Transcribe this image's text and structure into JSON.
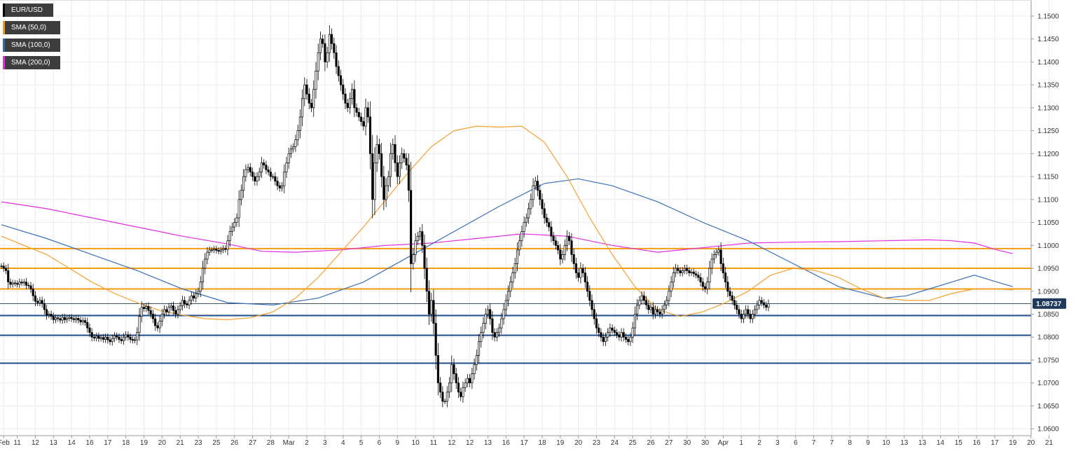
{
  "chart_data": {
    "type": "candlestick",
    "symbol": "EUR/USD",
    "ylim": [
      1.0585,
      1.1535
    ],
    "y_ticks": [
      "1.0600",
      "1.0650",
      "1.0700",
      "1.0750",
      "1.0800",
      "1.0850",
      "1.0900",
      "1.0950",
      "1.1000",
      "1.1050",
      "1.1100",
      "1.1150",
      "1.1200",
      "1.1250",
      "1.1300",
      "1.1350",
      "1.1400",
      "1.1450",
      "1.1500"
    ],
    "x_ticks": [
      {
        "i": 1,
        "label": "Feb"
      },
      {
        "i": 7,
        "label": "11"
      },
      {
        "i": 15,
        "label": "12"
      },
      {
        "i": 23,
        "label": "13"
      },
      {
        "i": 31,
        "label": "14"
      },
      {
        "i": 39,
        "label": "16"
      },
      {
        "i": 47,
        "label": "17"
      },
      {
        "i": 55,
        "label": "18"
      },
      {
        "i": 63,
        "label": "19"
      },
      {
        "i": 71,
        "label": "20"
      },
      {
        "i": 79,
        "label": "21"
      },
      {
        "i": 87,
        "label": "23"
      },
      {
        "i": 95,
        "label": "25"
      },
      {
        "i": 103,
        "label": "26"
      },
      {
        "i": 111,
        "label": "27"
      },
      {
        "i": 119,
        "label": "28"
      },
      {
        "i": 127,
        "label": "Mar"
      },
      {
        "i": 135,
        "label": "2"
      },
      {
        "i": 143,
        "label": "3"
      },
      {
        "i": 151,
        "label": "4"
      },
      {
        "i": 159,
        "label": "5"
      },
      {
        "i": 167,
        "label": "6"
      },
      {
        "i": 175,
        "label": "9"
      },
      {
        "i": 183,
        "label": "10"
      },
      {
        "i": 191,
        "label": "11"
      },
      {
        "i": 199,
        "label": "12"
      },
      {
        "i": 207,
        "label": "12"
      },
      {
        "i": 215,
        "label": "13"
      },
      {
        "i": 223,
        "label": "16"
      },
      {
        "i": 231,
        "label": "17"
      },
      {
        "i": 239,
        "label": "18"
      },
      {
        "i": 247,
        "label": "19"
      },
      {
        "i": 255,
        "label": "20"
      },
      {
        "i": 263,
        "label": "23"
      },
      {
        "i": 271,
        "label": "24"
      },
      {
        "i": 279,
        "label": "25"
      },
      {
        "i": 287,
        "label": "26"
      },
      {
        "i": 295,
        "label": "27"
      },
      {
        "i": 303,
        "label": "30"
      },
      {
        "i": 311,
        "label": "30"
      },
      {
        "i": 319,
        "label": "Apr"
      },
      {
        "i": 327,
        "label": "1"
      },
      {
        "i": 335,
        "label": "2"
      },
      {
        "i": 343,
        "label": "3"
      },
      {
        "i": 351,
        "label": "6"
      },
      {
        "i": 359,
        "label": "7"
      },
      {
        "i": 367,
        "label": "7"
      },
      {
        "i": 375,
        "label": "8"
      },
      {
        "i": 383,
        "label": "9"
      },
      {
        "i": 391,
        "label": "10"
      },
      {
        "i": 399,
        "label": "13"
      },
      {
        "i": 407,
        "label": "13"
      },
      {
        "i": 415,
        "label": "14"
      },
      {
        "i": 423,
        "label": "15"
      },
      {
        "i": 431,
        "label": "16"
      },
      {
        "i": 439,
        "label": "17"
      },
      {
        "i": 447,
        "label": "19"
      },
      {
        "i": 455,
        "label": "20"
      },
      {
        "i": 463,
        "label": "21"
      }
    ],
    "closes": [
      1.0955,
      1.095,
      1.0945,
      1.092,
      1.0915,
      1.0918,
      1.0917,
      1.0915,
      1.092,
      1.0918,
      1.092,
      1.0913,
      1.0912,
      1.0905,
      1.089,
      1.0878,
      1.0875,
      1.088,
      1.0873,
      1.086,
      1.0848,
      1.085,
      1.0845,
      1.0838,
      1.0842,
      1.084,
      1.0837,
      1.0843,
      1.0838,
      1.0841,
      1.0843,
      1.084,
      1.0838,
      1.0841,
      1.0837,
      1.0833,
      1.0836,
      1.0832,
      1.082,
      1.081,
      1.08,
      1.0798,
      1.0802,
      1.0797,
      1.0799,
      1.0795,
      1.08,
      1.0794,
      1.079,
      1.0797,
      1.0803,
      1.08,
      1.0795,
      1.0792,
      1.08,
      1.0805,
      1.08,
      1.0795,
      1.0793,
      1.0794,
      1.081,
      1.0845,
      1.0865,
      1.0862,
      1.0867,
      1.0858,
      1.085,
      1.084,
      1.0825,
      1.082,
      1.0835,
      1.085,
      1.086,
      1.0855,
      1.0865,
      1.0868,
      1.0858,
      1.085,
      1.086,
      1.0868,
      1.088,
      1.0872,
      1.087,
      1.088,
      1.089,
      1.0885,
      1.0895,
      1.09,
      1.092,
      1.095,
      1.097,
      1.0985,
      1.099,
      1.099,
      1.0992,
      1.0989,
      1.0987,
      1.099,
      1.0993,
      1.0991,
      1.101,
      1.103,
      1.104,
      1.105,
      1.106,
      1.11,
      1.112,
      1.115,
      1.1165,
      1.117,
      1.116,
      1.115,
      1.114,
      1.115,
      1.116,
      1.118,
      1.1175,
      1.1165,
      1.116,
      1.115,
      1.115,
      1.114,
      1.113,
      1.1125,
      1.113,
      1.116,
      1.118,
      1.12,
      1.121,
      1.1215,
      1.123,
      1.125,
      1.128,
      1.132,
      1.135,
      1.133,
      1.131,
      1.13,
      1.134,
      1.138,
      1.142,
      1.145,
      1.144,
      1.14,
      1.142,
      1.146,
      1.144,
      1.142,
      1.139,
      1.137,
      1.135,
      1.133,
      1.131,
      1.13,
      1.132,
      1.134,
      1.13,
      1.129,
      1.128,
      1.127,
      1.126,
      1.13,
      1.128,
      1.12,
      1.11,
      1.118,
      1.122,
      1.12,
      1.115,
      1.11,
      1.113,
      1.115,
      1.12,
      1.122,
      1.118,
      1.115,
      1.118,
      1.12,
      1.119,
      1.1175,
      1.112,
      1.096,
      1.098,
      1.101,
      1.102,
      1.103,
      1.1,
      1.095,
      1.09,
      1.085,
      1.088,
      1.083,
      1.076,
      1.07,
      1.068,
      1.066,
      1.066,
      1.068,
      1.07,
      1.074,
      1.072,
      1.07,
      1.068,
      1.067,
      1.069,
      1.07,
      1.071,
      1.07,
      1.072,
      1.074,
      1.076,
      1.079,
      1.081,
      1.083,
      1.085,
      1.086,
      1.084,
      1.081,
      1.08,
      1.081,
      1.082,
      1.084,
      1.086,
      1.088,
      1.09,
      1.092,
      1.094,
      1.096,
      1.099,
      1.101,
      1.103,
      1.105,
      1.106,
      1.108,
      1.11,
      1.113,
      1.114,
      1.112,
      1.11,
      1.108,
      1.106,
      1.105,
      1.104,
      1.102,
      1.101,
      1.1,
      1.099,
      1.097,
      1.098,
      1.1,
      1.102,
      1.101,
      1.098,
      1.096,
      1.094,
      1.093,
      1.095,
      1.094,
      1.092,
      1.09,
      1.088,
      1.086,
      1.084,
      1.082,
      1.081,
      1.08,
      1.079,
      1.08,
      1.081,
      1.082,
      1.0815,
      1.081,
      1.0805,
      1.08,
      1.081,
      1.08,
      1.0795,
      1.079,
      1.08,
      1.082,
      1.085,
      1.087,
      1.088,
      1.089,
      1.088,
      1.087,
      1.086,
      1.0865,
      1.085,
      1.086,
      1.0855,
      1.085,
      1.086,
      1.087,
      1.088,
      1.09,
      1.092,
      1.094,
      1.095,
      1.0945,
      1.094,
      1.0945,
      1.095,
      1.0945,
      1.094,
      1.0942,
      1.0938,
      1.0935,
      1.093,
      1.092,
      1.091,
      1.0905,
      1.092,
      1.095,
      1.097,
      1.098,
      1.0985,
      1.099,
      1.096,
      1.094,
      1.092,
      1.09,
      1.089,
      1.088,
      1.087,
      1.086,
      1.085,
      1.084,
      1.085,
      1.086,
      1.085,
      1.084,
      1.085,
      1.086,
      1.087,
      1.088,
      1.0875,
      1.087,
      1.0865,
      1.0873
    ],
    "sma_50": [
      [
        0,
        1.102
      ],
      [
        10,
        1.1
      ],
      [
        20,
        1.098
      ],
      [
        30,
        1.095
      ],
      [
        40,
        1.092
      ],
      [
        50,
        1.0895
      ],
      [
        60,
        1.0875
      ],
      [
        70,
        1.0858
      ],
      [
        80,
        1.0848
      ],
      [
        90,
        1.084
      ],
      [
        100,
        1.0838
      ],
      [
        110,
        1.0842
      ],
      [
        120,
        1.0855
      ],
      [
        130,
        1.0885
      ],
      [
        140,
        1.093
      ],
      [
        150,
        1.0985
      ],
      [
        160,
        1.104
      ],
      [
        170,
        1.11
      ],
      [
        180,
        1.116
      ],
      [
        190,
        1.1215
      ],
      [
        200,
        1.125
      ],
      [
        210,
        1.126
      ],
      [
        220,
        1.1258
      ],
      [
        230,
        1.126
      ],
      [
        240,
        1.1225
      ],
      [
        250,
        1.115
      ],
      [
        260,
        1.106
      ],
      [
        270,
        1.098
      ],
      [
        280,
        1.091
      ],
      [
        290,
        1.086
      ],
      [
        300,
        1.0845
      ],
      [
        310,
        1.0855
      ],
      [
        320,
        1.0875
      ],
      [
        330,
        1.09
      ],
      [
        340,
        1.0935
      ],
      [
        350,
        1.095
      ],
      [
        360,
        1.0945
      ],
      [
        370,
        1.093
      ],
      [
        380,
        1.0905
      ],
      [
        390,
        1.0885
      ],
      [
        400,
        1.088
      ],
      [
        410,
        1.088
      ],
      [
        420,
        1.0895
      ],
      [
        430,
        1.0905
      ],
      [
        440,
        1.0905
      ],
      [
        447,
        1.0903
      ]
    ],
    "sma_100": [
      [
        0,
        1.1045
      ],
      [
        20,
        1.1015
      ],
      [
        40,
        1.098
      ],
      [
        60,
        1.0945
      ],
      [
        80,
        1.0905
      ],
      [
        100,
        1.0875
      ],
      [
        120,
        1.087
      ],
      [
        140,
        1.0885
      ],
      [
        160,
        1.092
      ],
      [
        180,
        1.0975
      ],
      [
        200,
        1.103
      ],
      [
        220,
        1.1085
      ],
      [
        240,
        1.1135
      ],
      [
        255,
        1.1145
      ],
      [
        270,
        1.113
      ],
      [
        290,
        1.1095
      ],
      [
        310,
        1.105
      ],
      [
        330,
        1.101
      ],
      [
        350,
        1.096
      ],
      [
        370,
        1.091
      ],
      [
        390,
        1.0885
      ],
      [
        400,
        1.089
      ],
      [
        410,
        1.0905
      ],
      [
        420,
        1.092
      ],
      [
        430,
        1.0935
      ],
      [
        440,
        1.092
      ],
      [
        447,
        1.091
      ]
    ],
    "sma_200": [
      [
        0,
        1.1095
      ],
      [
        20,
        1.108
      ],
      [
        40,
        1.106
      ],
      [
        60,
        1.104
      ],
      [
        80,
        1.102
      ],
      [
        100,
        1.1003
      ],
      [
        115,
        1.0987
      ],
      [
        130,
        1.0985
      ],
      [
        150,
        1.099
      ],
      [
        170,
        1.1
      ],
      [
        190,
        1.1005
      ],
      [
        210,
        1.1015
      ],
      [
        230,
        1.1025
      ],
      [
        250,
        1.102
      ],
      [
        270,
        1.1
      ],
      [
        290,
        1.0985
      ],
      [
        310,
        1.0995
      ],
      [
        330,
        1.1005
      ],
      [
        350,
        1.1007
      ],
      [
        370,
        1.1008
      ],
      [
        390,
        1.101
      ],
      [
        410,
        1.1012
      ],
      [
        420,
        1.101
      ],
      [
        430,
        1.1005
      ],
      [
        440,
        1.099
      ],
      [
        447,
        1.0982
      ]
    ],
    "horizontal_levels": [
      {
        "value": 1.0993,
        "color": "#f39c12"
      },
      {
        "value": 1.095,
        "color": "#f39c12"
      },
      {
        "value": 1.0905,
        "color": "#f39c12"
      },
      {
        "value": 1.0847,
        "color": "#1f4e8c"
      },
      {
        "value": 1.0804,
        "color": "#1f4e8c"
      },
      {
        "value": 1.0743,
        "color": "#1f4e8c"
      }
    ],
    "current_price": {
      "value": 1.0873,
      "label": "1.08737"
    },
    "legend": [
      {
        "label": "EUR/USD",
        "color": "#000000"
      },
      {
        "label": "SMA (50,0)",
        "color": "#f39c12"
      },
      {
        "label": "SMA (100,0)",
        "color": "#2f6bb5"
      },
      {
        "label": "SMA (200,0)",
        "color": "#e22ee2"
      }
    ],
    "colors": {
      "sma_50": "#f7a030",
      "sma_100": "#3a6fb8",
      "sma_200": "#e22ee2",
      "candle_up": "#ffffff",
      "candle_down": "#000000",
      "grid": "#ececec",
      "price_tag": "#1f3a5a"
    },
    "grid": true,
    "legend_position": "top-left"
  }
}
